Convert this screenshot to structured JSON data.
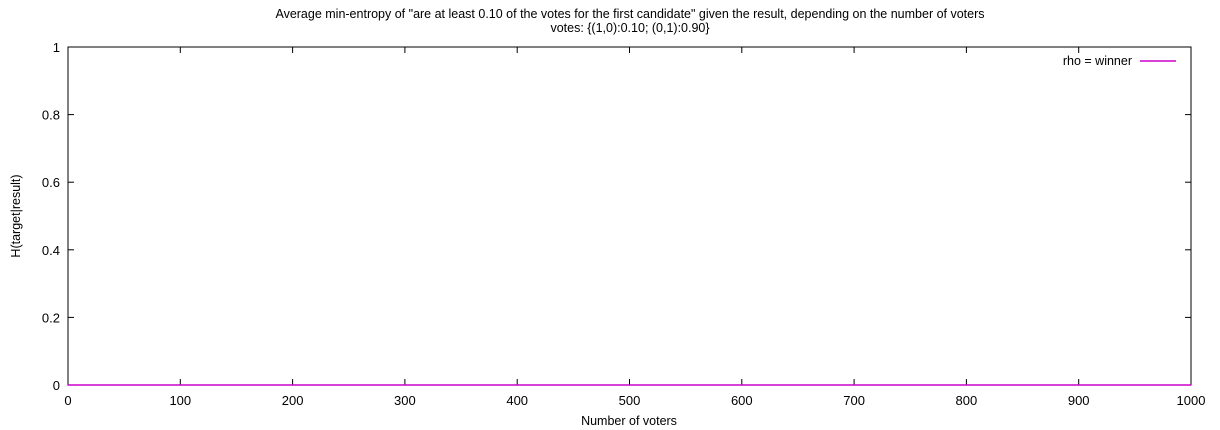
{
  "chart_data": {
    "type": "line",
    "title": "Average min-entropy of \"are at least 0.10 of the votes for the first candidate\" given the result, depending on the number of voters",
    "subtitle": "votes: {(1,0):0.10; (0,1):0.90}",
    "xlabel": "Number of voters",
    "ylabel": "H(target|result)",
    "xlim": [
      0,
      1000
    ],
    "ylim": [
      0,
      1
    ],
    "x_ticks": [
      0,
      100,
      200,
      300,
      400,
      500,
      600,
      700,
      800,
      900,
      1000
    ],
    "y_ticks": [
      0,
      0.2,
      0.4,
      0.6,
      0.8,
      1
    ],
    "x_tick_labels": [
      "0",
      "100",
      "200",
      "300",
      "400",
      "500",
      "600",
      "700",
      "800",
      "900",
      "1000"
    ],
    "y_tick_labels": [
      "0",
      "0.2",
      "0.4",
      "0.6",
      "0.8",
      "1"
    ],
    "grid": false,
    "legend_position": "top-right",
    "series": [
      {
        "name": "rho = winner",
        "color": "#cc00cc",
        "x": [
          0,
          100,
          200,
          300,
          400,
          500,
          600,
          700,
          800,
          900,
          1000
        ],
        "y": [
          0,
          0,
          0,
          0,
          0,
          0,
          0,
          0,
          0,
          0,
          0
        ]
      }
    ]
  }
}
